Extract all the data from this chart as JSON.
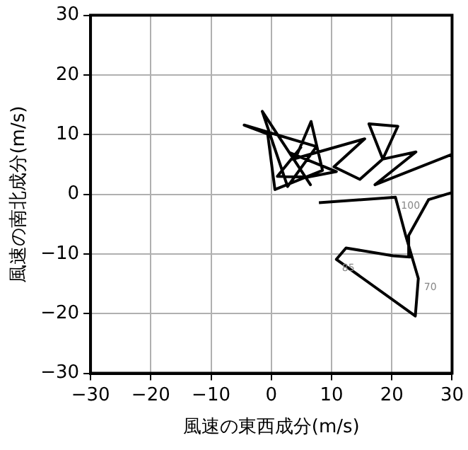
{
  "chart_data": {
    "type": "line",
    "xlabel": "風速の東西成分(m/s)",
    "ylabel": "風速の南北成分(m/s)",
    "x": [
      7.9,
      20.6,
      22.3,
      24.4,
      23.9,
      10.8,
      12.4,
      20.2,
      23.0,
      22.8,
      26.1,
      30,
      30,
      17.2,
      24.0,
      18.5,
      21.0,
      16.2,
      18.5,
      14.7,
      10.4,
      15.5,
      4,
      6.6,
      8.5,
      0.6,
      -0.6,
      -4.5,
      7.5,
      2.7,
      -1.5,
      6.5,
      3,
      10.8,
      6.2,
      1,
      5
    ],
    "series": [
      {
        "color": "#000000",
        "values": [
          -1.4,
          -0.5,
          -6.9,
          -14.1,
          -20.4,
          -10.9,
          -9.0,
          -10.3,
          -10.5,
          -6.9,
          -0.9,
          0.3,
          6.7,
          1.6,
          7.1,
          5.9,
          11.4,
          11.8,
          5.9,
          2.5,
          4.6,
          9.3,
          6,
          12.2,
          4,
          0.8,
          10.1,
          11.6,
          8.0,
          1.3,
          13.9,
          1.6,
          7,
          3.8,
          2.9,
          3,
          8
        ]
      }
    ],
    "annotations": [
      {
        "text": "100",
        "x": 20.6,
        "y": -0.5
      },
      {
        "text": "85",
        "x": 10.8,
        "y": -10.9
      },
      {
        "text": "70",
        "x": 24.4,
        "y": -14.1
      }
    ],
    "xlim": [
      -30,
      30
    ],
    "ylim": [
      -30,
      30
    ],
    "xticks": [
      -30,
      -20,
      -10,
      0,
      10,
      20,
      30
    ],
    "yticks": [
      -30,
      -20,
      -10,
      0,
      10,
      20,
      30
    ],
    "grid": true,
    "marker": "none",
    "line_style": "solid",
    "legend": false
  }
}
